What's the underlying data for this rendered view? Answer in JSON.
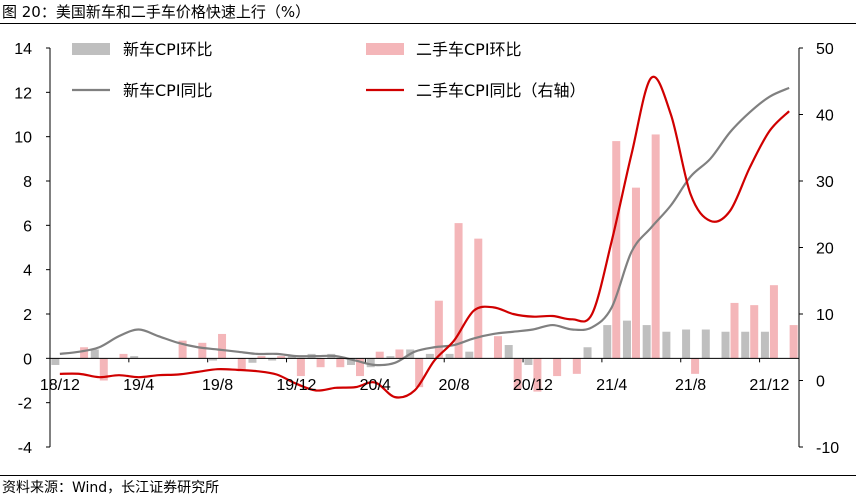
{
  "figure": {
    "title": "图 20：美国新车和二手车价格快速上行（%）",
    "source": "资料来源：Wind，长江证券研究所"
  },
  "colors": {
    "new_mom": "#bfbfbf",
    "used_mom": "#f4b6b9",
    "new_yoy": "#808080",
    "used_yoy": "#d00000",
    "axis": "#000000"
  },
  "chart_data": {
    "type": "bar",
    "categories": [
      "18/12",
      "19/1",
      "19/2",
      "19/3",
      "19/4",
      "19/5",
      "19/6",
      "19/7",
      "19/8",
      "19/9",
      "19/10",
      "19/11",
      "19/12",
      "20/1",
      "20/2",
      "20/3",
      "20/4",
      "20/5",
      "20/6",
      "20/7",
      "20/8",
      "20/9",
      "20/10",
      "20/11",
      "20/12",
      "21/1",
      "21/2",
      "21/3",
      "21/4",
      "21/5",
      "21/6",
      "21/7",
      "21/8",
      "21/9",
      "21/10",
      "21/11",
      "21/12",
      "22/1"
    ],
    "x_tick_labels": [
      "18/12",
      "19/4",
      "19/8",
      "19/12",
      "20/4",
      "20/8",
      "20/12",
      "21/4",
      "21/8",
      "21/12"
    ],
    "x_tick_indices": [
      0,
      4,
      8,
      12,
      16,
      20,
      24,
      28,
      32,
      36
    ],
    "y_left": {
      "min": -4,
      "max": 14,
      "ticks": [
        -4,
        -2,
        0,
        2,
        4,
        6,
        8,
        10,
        12,
        14
      ]
    },
    "y_right": {
      "min": -10,
      "max": 50,
      "ticks": [
        -10,
        0,
        10,
        20,
        30,
        40,
        50
      ]
    },
    "grid": false,
    "legend_position": "top",
    "series": [
      {
        "name": "新车CPI环比",
        "kind": "bar",
        "axis": "left",
        "values": [
          -0.3,
          0.0,
          0.4,
          0.0,
          0.1,
          0.0,
          0.0,
          0.0,
          -0.1,
          0.0,
          -0.2,
          -0.1,
          0.1,
          0.2,
          0.2,
          -0.3,
          -0.4,
          0.1,
          0.4,
          0.2,
          0.2,
          0.3,
          0.0,
          0.6,
          -0.3,
          0.0,
          0.0,
          0.5,
          1.5,
          1.7,
          1.5,
          1.2,
          1.3,
          1.3,
          1.2,
          1.2,
          1.2,
          0.0
        ]
      },
      {
        "name": "二手车CPI环比",
        "kind": "bar",
        "axis": "left",
        "values": [
          0.0,
          0.5,
          -1.0,
          0.2,
          0.0,
          0.0,
          0.8,
          0.7,
          1.1,
          -0.5,
          0.1,
          0.1,
          -0.8,
          -0.4,
          -0.4,
          -0.8,
          0.3,
          0.4,
          -1.3,
          2.6,
          6.1,
          5.4,
          1.0,
          -1.4,
          -1.5,
          -0.8,
          -0.7,
          0.0,
          9.8,
          7.7,
          10.1,
          0.0,
          -0.7,
          0.0,
          2.5,
          2.4,
          3.3,
          1.5
        ]
      },
      {
        "name": "新车CPI同比",
        "kind": "line",
        "axis": "left",
        "values": [
          0.2,
          0.3,
          0.5,
          1.0,
          1.3,
          1.0,
          0.7,
          0.5,
          0.4,
          0.3,
          0.2,
          0.2,
          0.1,
          0.1,
          0.1,
          -0.1,
          -0.3,
          -0.2,
          0.3,
          0.5,
          0.6,
          0.9,
          1.1,
          1.2,
          1.3,
          1.5,
          1.3,
          1.4,
          2.3,
          4.8,
          5.9,
          6.9,
          8.2,
          9.0,
          10.2,
          11.1,
          11.8,
          12.2
        ]
      },
      {
        "name": "二手车CPI同比（右轴）",
        "kind": "line",
        "axis": "right",
        "values": [
          1.0,
          1.0,
          0.5,
          0.8,
          0.5,
          0.8,
          0.9,
          1.3,
          1.7,
          1.6,
          1.4,
          0.9,
          -0.5,
          -1.5,
          -1.1,
          -1.0,
          -0.3,
          -2.5,
          -1.5,
          3.0,
          6.0,
          10.5,
          11.0,
          10.0,
          9.6,
          9.7,
          9.2,
          10.0,
          21.0,
          34.0,
          45.5,
          40.0,
          28.0,
          24.0,
          25.5,
          32.0,
          37.5,
          40.5
        ]
      }
    ]
  }
}
